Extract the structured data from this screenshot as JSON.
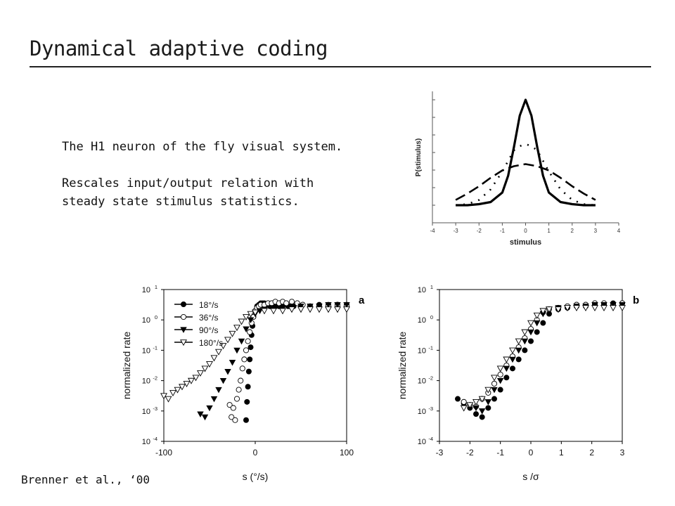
{
  "slide": {
    "title": "Dynamical adaptive coding",
    "lines": [
      "The H1 neuron of the fly visual system.",
      "Rescales input/output relation with steady state stimulus statistics."
    ],
    "citation": "Brenner et al., ‘00"
  },
  "chart_data": [
    {
      "type": "line",
      "xlabel": "stimulus",
      "ylabel": "P(stimulus)",
      "xlim": [
        -4,
        4
      ],
      "x_ticks": [
        "-4",
        "-3",
        "-2",
        "-1",
        "0",
        "1",
        "2",
        "3",
        "4"
      ],
      "series": [
        {
          "style": "solid",
          "x": [
            -3,
            -2.5,
            -2,
            -1.5,
            -1,
            -0.75,
            -0.5,
            -0.25,
            0,
            0.25,
            0.5,
            0.75,
            1,
            1.5,
            2,
            2.5,
            3
          ],
          "y": [
            0.0,
            0.0,
            0.01,
            0.03,
            0.12,
            0.28,
            0.55,
            0.85,
            1.0,
            0.85,
            0.55,
            0.28,
            0.12,
            0.03,
            0.01,
            0.0,
            0.0
          ]
        },
        {
          "style": "dotted",
          "x": [
            -3,
            -2.5,
            -2,
            -1.5,
            -1,
            -0.5,
            -0.25,
            0,
            0.25,
            0.5,
            1,
            1.5,
            2,
            2.5,
            3
          ],
          "y": [
            0.0,
            0.01,
            0.05,
            0.15,
            0.32,
            0.52,
            0.56,
            0.58,
            0.56,
            0.52,
            0.32,
            0.15,
            0.05,
            0.01,
            0.0
          ]
        },
        {
          "style": "dashed",
          "x": [
            -3,
            -2.5,
            -2,
            -1.5,
            -1,
            -0.5,
            0,
            0.5,
            1,
            1.5,
            2,
            2.5,
            3
          ],
          "y": [
            0.05,
            0.11,
            0.18,
            0.26,
            0.33,
            0.37,
            0.39,
            0.37,
            0.33,
            0.26,
            0.18,
            0.11,
            0.05
          ]
        }
      ]
    },
    {
      "type": "scatter",
      "panel_label": "a",
      "xlabel": "s (°/s)",
      "ylabel": "normalized rate",
      "xlim": [
        -100,
        100
      ],
      "ylim_log10": [
        -4,
        1
      ],
      "x_ticks": [
        "-100",
        "0",
        "100"
      ],
      "y_ticks": [
        "10",
        "10",
        "10",
        "10",
        "10",
        "10"
      ],
      "y_tick_exponents": [
        "-4",
        "-3",
        "-2",
        "-1",
        "0",
        "1"
      ],
      "series": [
        {
          "name": "18°/s",
          "marker": "filled-circle",
          "x": [
            -10,
            -9,
            -8,
            -7,
            -6,
            -5,
            -4,
            -3,
            -2,
            0,
            2,
            4,
            6,
            8,
            10,
            12,
            14,
            16,
            18,
            22,
            26,
            30,
            36,
            42,
            50,
            60,
            70,
            80,
            90,
            100
          ],
          "log_y": [
            -3.3,
            -2.7,
            -2.2,
            -1.7,
            -1.3,
            -0.9,
            -0.5,
            -0.2,
            0.1,
            0.3,
            0.45,
            0.5,
            0.55,
            0.55,
            0.55,
            0.5,
            0.5,
            0.45,
            0.45,
            0.45,
            0.45,
            0.45,
            0.45,
            0.45,
            0.45,
            0.45,
            0.5,
            0.5,
            0.5,
            0.5
          ]
        },
        {
          "name": "36°/s",
          "marker": "open-circle",
          "x": [
            -28,
            -26,
            -24,
            -22,
            -20,
            -18,
            -16,
            -14,
            -12,
            -10,
            -8,
            -6,
            -4,
            -2,
            0,
            2,
            4,
            6,
            10,
            14,
            18,
            22,
            26,
            30,
            34,
            40,
            46,
            52,
            60,
            70,
            80,
            90,
            100
          ],
          "log_y": [
            -2.8,
            -3.2,
            -2.9,
            -3.3,
            -2.6,
            -2.3,
            -2.0,
            -1.6,
            -1.3,
            -1.0,
            -0.7,
            -0.4,
            -0.1,
            0.1,
            0.3,
            0.4,
            0.45,
            0.5,
            0.5,
            0.55,
            0.55,
            0.6,
            0.55,
            0.6,
            0.55,
            0.6,
            0.55,
            0.5,
            0.45,
            0.45,
            0.45,
            0.5,
            0.45
          ]
        },
        {
          "name": "90°/s",
          "marker": "filled-triangle",
          "x": [
            -60,
            -55,
            -50,
            -45,
            -40,
            -35,
            -30,
            -25,
            -20,
            -15,
            -10,
            -5,
            0,
            5,
            10,
            20,
            30,
            40,
            50,
            60,
            70,
            80,
            90,
            100
          ],
          "log_y": [
            -3.1,
            -3.2,
            -2.9,
            -2.6,
            -2.3,
            -2.0,
            -1.7,
            -1.4,
            -1.0,
            -0.7,
            -0.3,
            0.0,
            0.2,
            0.3,
            0.35,
            0.4,
            0.4,
            0.45,
            0.45,
            0.45,
            0.45,
            0.5,
            0.5,
            0.5
          ]
        },
        {
          "name": "180°/s",
          "marker": "open-triangle",
          "x": [
            -100,
            -95,
            -90,
            -85,
            -80,
            -75,
            -70,
            -65,
            -60,
            -55,
            -50,
            -45,
            -40,
            -35,
            -30,
            -25,
            -20,
            -15,
            -10,
            -5,
            0,
            10,
            20,
            30,
            40,
            50,
            60,
            70,
            80,
            90,
            100
          ],
          "log_y": [
            -2.5,
            -2.6,
            -2.4,
            -2.3,
            -2.2,
            -2.1,
            -2.0,
            -1.9,
            -1.75,
            -1.6,
            -1.45,
            -1.25,
            -1.05,
            -0.85,
            -0.65,
            -0.45,
            -0.25,
            -0.05,
            0.1,
            0.2,
            0.25,
            0.3,
            0.3,
            0.3,
            0.35,
            0.35,
            0.35,
            0.35,
            0.35,
            0.35,
            0.35
          ]
        }
      ]
    },
    {
      "type": "scatter",
      "panel_label": "b",
      "xlabel": "s /σ",
      "ylabel": "normalized rate",
      "xlim": [
        -3,
        3
      ],
      "ylim_log10": [
        -4,
        1
      ],
      "x_ticks": [
        "-3",
        "-2",
        "-1",
        "0",
        "1",
        "2",
        "3"
      ],
      "y_ticks": [
        "10",
        "10",
        "10",
        "10",
        "10",
        "10"
      ],
      "y_tick_exponents": [
        "-4",
        "-3",
        "-2",
        "-1",
        "0",
        "1"
      ],
      "series": [
        {
          "name": "18°/s",
          "marker": "filled-circle",
          "x": [
            -2.4,
            -2.2,
            -2.0,
            -1.8,
            -1.6,
            -1.4,
            -1.2,
            -1.0,
            -0.8,
            -0.6,
            -0.4,
            -0.2,
            0.0,
            0.2,
            0.4,
            0.6,
            0.9,
            1.2,
            1.5,
            1.8,
            2.1,
            2.4,
            2.7,
            3.0
          ],
          "log_y": [
            -2.6,
            -2.75,
            -2.9,
            -3.1,
            -3.2,
            -2.9,
            -2.6,
            -2.3,
            -1.9,
            -1.6,
            -1.3,
            -1.0,
            -0.7,
            -0.4,
            -0.1,
            0.2,
            0.35,
            0.4,
            0.45,
            0.45,
            0.5,
            0.5,
            0.55,
            0.55
          ]
        },
        {
          "name": "36°/s",
          "marker": "open-circle",
          "x": [
            -2.2,
            -2.0,
            -1.8,
            -1.6,
            -1.4,
            -1.2,
            -1.0,
            -0.8,
            -0.6,
            -0.4,
            -0.2,
            0.0,
            0.2,
            0.4,
            0.6,
            0.9,
            1.2,
            1.5,
            1.8,
            2.1,
            2.4,
            2.7,
            3.0
          ],
          "log_y": [
            -2.7,
            -2.8,
            -2.85,
            -2.6,
            -2.4,
            -2.1,
            -1.8,
            -1.5,
            -1.2,
            -0.9,
            -0.6,
            -0.3,
            0.0,
            0.25,
            0.35,
            0.4,
            0.45,
            0.5,
            0.5,
            0.55,
            0.55,
            0.5,
            0.55
          ]
        },
        {
          "name": "90°/s",
          "marker": "filled-triangle",
          "x": [
            -2.0,
            -1.8,
            -1.6,
            -1.4,
            -1.2,
            -1.0,
            -0.8,
            -0.6,
            -0.4,
            -0.2,
            0.0,
            0.2,
            0.4,
            0.6,
            0.9,
            1.2,
            1.5,
            1.8,
            2.1,
            2.4,
            2.7,
            3.0
          ],
          "log_y": [
            -2.8,
            -2.9,
            -3.0,
            -2.7,
            -2.3,
            -2.0,
            -1.6,
            -1.3,
            -1.0,
            -0.7,
            -0.4,
            -0.1,
            0.2,
            0.35,
            0.4,
            0.4,
            0.45,
            0.45,
            0.5,
            0.5,
            0.5,
            0.5
          ]
        },
        {
          "name": "180°/s",
          "marker": "open-triangle",
          "x": [
            -2.2,
            -2.0,
            -1.8,
            -1.6,
            -1.4,
            -1.2,
            -1.0,
            -0.8,
            -0.6,
            -0.4,
            -0.2,
            0.0,
            0.2,
            0.4,
            0.6,
            0.9,
            1.2,
            1.5,
            1.8,
            2.1,
            2.4,
            2.7,
            3.0
          ],
          "log_y": [
            -2.9,
            -2.8,
            -2.7,
            -2.6,
            -2.3,
            -1.9,
            -1.6,
            -1.3,
            -1.0,
            -0.7,
            -0.4,
            -0.1,
            0.15,
            0.3,
            0.35,
            0.35,
            0.4,
            0.4,
            0.4,
            0.4,
            0.4,
            0.4,
            0.4
          ]
        }
      ]
    }
  ]
}
